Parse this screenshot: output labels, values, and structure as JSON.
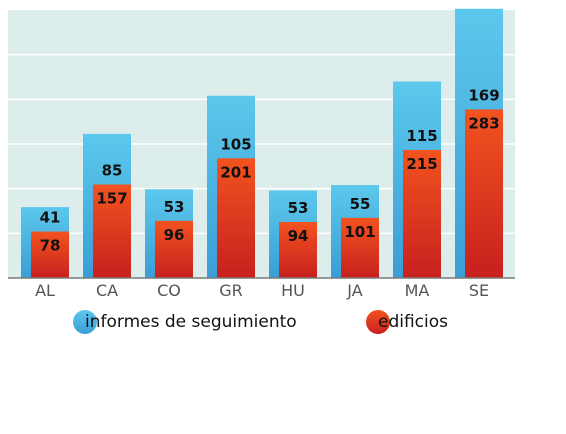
{
  "chart_data": {
    "type": "bar",
    "categories": [
      "AL",
      "CA",
      "CO",
      "GR",
      "HU",
      "JA",
      "MA",
      "SE"
    ],
    "series": [
      {
        "name": "informes de seguimiento",
        "values": [
          41,
          85,
          53,
          105,
          53,
          55,
          115,
          169
        ]
      },
      {
        "name": "edificios",
        "values": [
          78,
          157,
          96,
          201,
          94,
          101,
          215,
          283
        ]
      }
    ],
    "ylim": [
      0,
      450
    ],
    "grid": true,
    "legend": "bottom",
    "colors": {
      "series_0_top": "#5cc8ec",
      "series_0_bottom": "#3a9ed6",
      "series_1_top": "#f2531f",
      "series_1_bottom": "#c8201f",
      "plot_bg": "#dcedec",
      "axis": "#7a7a7a"
    }
  }
}
